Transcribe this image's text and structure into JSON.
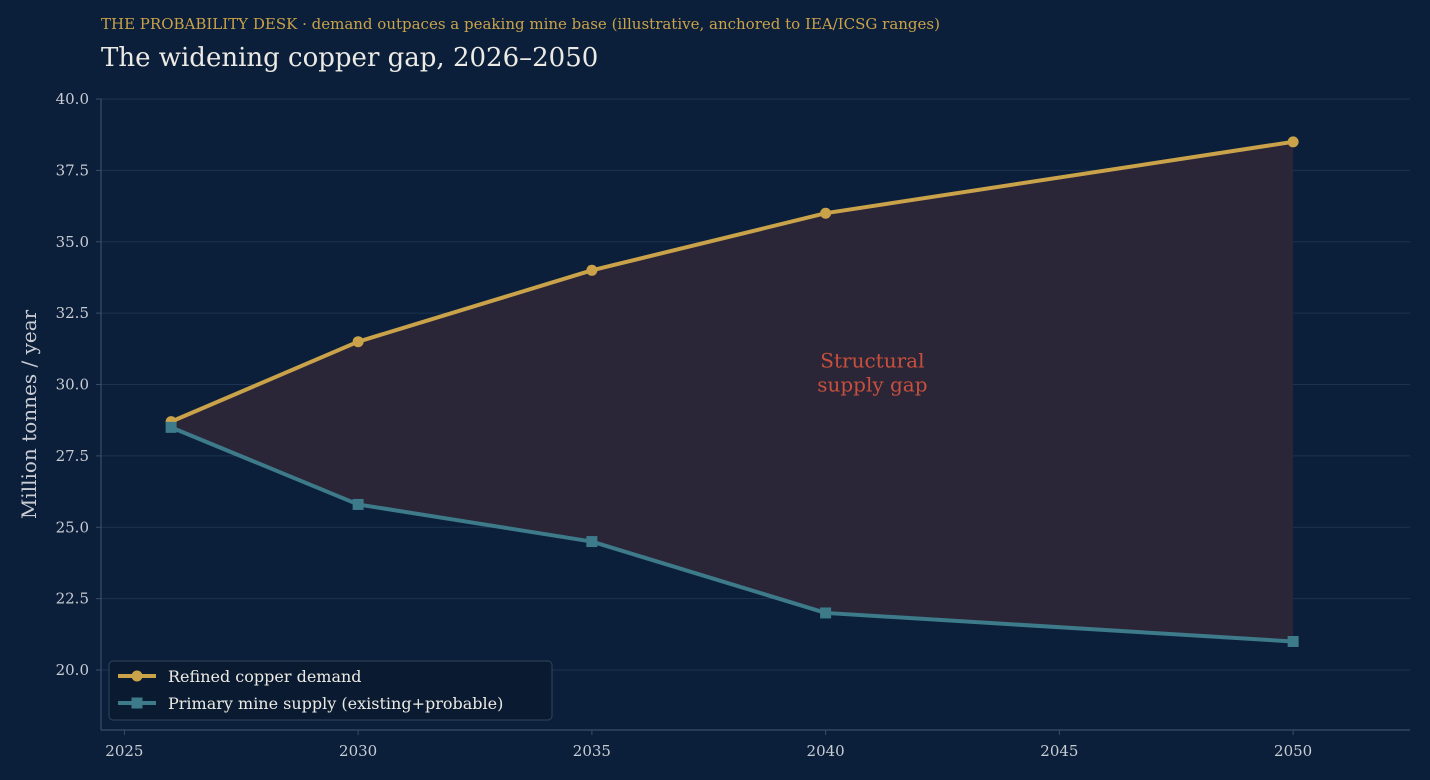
{
  "header": {
    "kicker": "THE PROBABILITY DESK  ·  demand outpaces a peaking mine base (illustrative, anchored to IEA/ICSG ranges)",
    "title": "The widening copper gap, 2026–2050"
  },
  "chart_data": {
    "type": "line",
    "title": "The widening copper gap, 2026–2050",
    "xlabel": "",
    "ylabel": "Million tonnes / year",
    "xlim": [
      2024.5,
      2052.5
    ],
    "ylim": [
      17.9,
      40.0
    ],
    "x_ticks": [
      2025,
      2030,
      2035,
      2040,
      2045,
      2050
    ],
    "x_tick_labels": [
      "2025",
      "2030",
      "2035",
      "2040",
      "2045",
      "2050"
    ],
    "y_ticks": [
      20,
      22.5,
      25,
      27.5,
      30,
      32.5,
      35,
      37.5,
      40
    ],
    "y_tick_labels": [
      "20.0",
      "22.5",
      "25.0",
      "27.5",
      "30.0",
      "32.5",
      "35.0",
      "37.5",
      "40.0"
    ],
    "grid": "horizontal",
    "legend_position": "bottom-left",
    "series": [
      {
        "name": "Refined copper demand",
        "marker": "circle",
        "color": "#c9a24a",
        "x": [
          2026,
          2030,
          2035,
          2040,
          2050
        ],
        "y": [
          28.7,
          31.5,
          34.0,
          36.0,
          38.5
        ]
      },
      {
        "name": "Primary mine supply (existing+probable)",
        "marker": "square",
        "color": "#3d7a8a",
        "x": [
          2026,
          2030,
          2035,
          2040,
          2050
        ],
        "y": [
          28.5,
          25.8,
          24.5,
          22.0,
          21.0
        ]
      }
    ],
    "gap_fill_color": "#2e2637",
    "annotations": [
      {
        "lines": [
          "Structural",
          "supply gap"
        ],
        "x": 2041,
        "y": 30.6,
        "color": "#c8503c"
      }
    ]
  }
}
